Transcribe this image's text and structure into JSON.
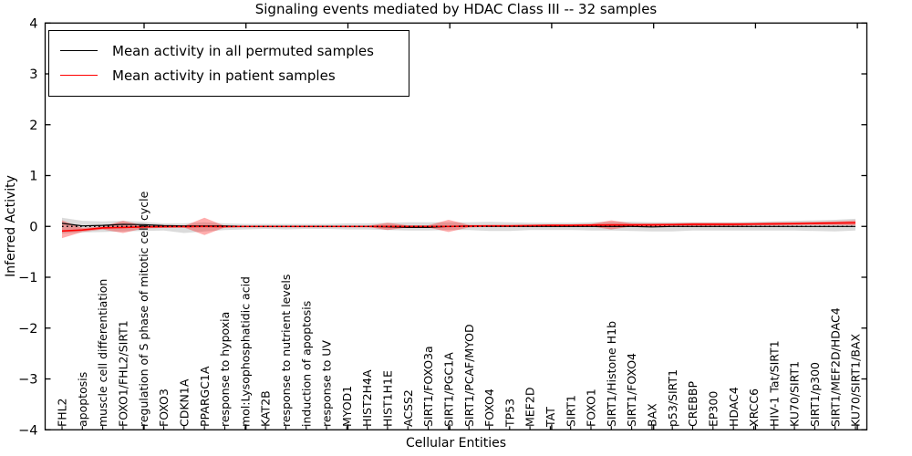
{
  "figure": {
    "title": "Signaling events mediated by HDAC Class III -- 32 samples",
    "xlabel": "Cellular Entities",
    "ylabel": "Inferred Activity",
    "legend": [
      {
        "label": "Mean activity in all permuted samples",
        "color": "#000000"
      },
      {
        "label": "Mean activity in patient samples",
        "color": "#ff0000"
      }
    ]
  },
  "chart_data": {
    "type": "line",
    "title": "Signaling events mediated by HDAC Class III -- 32 samples",
    "xlabel": "Cellular Entities",
    "ylabel": "Inferred Activity",
    "ylim": [
      -4,
      4
    ],
    "ytick_labels": [
      "4",
      "3",
      "2",
      "1",
      "0",
      "−1",
      "−2",
      "−3",
      "−4"
    ],
    "ytick_values": [
      4,
      3,
      2,
      1,
      0,
      -1,
      -2,
      -3,
      -4
    ],
    "grid": false,
    "legend_position": "upper left",
    "zero_line": {
      "style": "dotted",
      "color": "#000000",
      "y": 0
    },
    "categories": [
      "FHL2",
      "apoptosis",
      "muscle cell differentiation",
      "FOXO1/FHL2/SIRT1",
      "regulation of S phase of mitotic cell cycle",
      "FOXO3",
      "CDKN1A",
      "PPARGC1A",
      "response to hypoxia",
      "mol:Lysophosphatidic acid",
      "KAT2B",
      "response to nutrient levels",
      "induction of apoptosis",
      "response to UV",
      "MYOD1",
      "HIST2H4A",
      "HIST1H1E",
      "ACSS2",
      "SIRT1/FOXO3a",
      "SIRT1/PGC1A",
      "SIRT1/PCAF/MYOD",
      "FOXO4",
      "TP53",
      "MEF2D",
      "TAT",
      "SIRT1",
      "FOXO1",
      "SIRT1/Histone H1b",
      "SIRT1/FOXO4",
      "BAX",
      "p53/SIRT1",
      "CREBBP",
      "EP300",
      "HDAC4",
      "XRCC6",
      "HIV-1 Tat/SIRT1",
      "KU70/SIRT1",
      "SIRT1/p300",
      "SIRT1/MEF2D/HDAC4",
      "KU70/SIRT1/BAX"
    ],
    "series": [
      {
        "name": "Mean activity in all permuted samples",
        "color": "#000000",
        "width": 1.2,
        "values": [
          0.06,
          0.01,
          0.02,
          0.04,
          0.035,
          0.015,
          0.01,
          0.01,
          0.01,
          0.0,
          0.0,
          0.0,
          0.0,
          0.0,
          0.0,
          0.0,
          -0.01,
          -0.02,
          -0.02,
          0.0,
          0.01,
          0.0,
          0.0,
          0.0,
          0.0,
          0.0,
          0.0,
          0.0,
          0.0,
          -0.01,
          0.0,
          0.0,
          0.0,
          0.0,
          0.0,
          0.0,
          0.0,
          0.0,
          0.0,
          0.0
        ]
      },
      {
        "name": "Mean activity in patient samples",
        "color": "#ff0000",
        "width": 1.7,
        "values": [
          -0.09,
          -0.07,
          -0.03,
          -0.02,
          -0.01,
          -0.005,
          -0.005,
          0.0,
          -0.005,
          0.0,
          0.0,
          0.0,
          0.0,
          0.0,
          0.0,
          0.0,
          0.0,
          0.0,
          0.0,
          0.0,
          0.005,
          0.01,
          0.01,
          0.015,
          0.02,
          0.02,
          0.025,
          0.03,
          0.03,
          0.03,
          0.035,
          0.04,
          0.04,
          0.04,
          0.045,
          0.05,
          0.055,
          0.06,
          0.065,
          0.07
        ]
      }
    ],
    "bands": [
      {
        "name": "permuted-samples-range",
        "color": "#000000",
        "opacity": 0.14,
        "upper": [
          0.17,
          0.11,
          0.1,
          0.11,
          0.09,
          0.06,
          0.06,
          0.08,
          0.06,
          0.05,
          0.05,
          0.05,
          0.05,
          0.05,
          0.06,
          0.06,
          0.07,
          0.08,
          0.08,
          0.08,
          0.08,
          0.09,
          0.08,
          0.07,
          0.07,
          0.07,
          0.08,
          0.09,
          0.09,
          0.08,
          0.08,
          0.08,
          0.08,
          0.08,
          0.09,
          0.1,
          0.11,
          0.12,
          0.13,
          0.15
        ],
        "lower": [
          -0.14,
          -0.12,
          -0.11,
          -0.1,
          -0.09,
          -0.08,
          -0.13,
          -0.1,
          -0.07,
          -0.06,
          -0.05,
          -0.06,
          -0.05,
          -0.05,
          -0.06,
          -0.06,
          -0.07,
          -0.08,
          -0.08,
          -0.07,
          -0.07,
          -0.09,
          -0.09,
          -0.07,
          -0.07,
          -0.07,
          -0.08,
          -0.08,
          -0.09,
          -0.1,
          -0.1,
          -0.08,
          -0.08,
          -0.08,
          -0.08,
          -0.08,
          -0.08,
          -0.09,
          -0.1,
          -0.08
        ]
      },
      {
        "name": "patient-samples-range",
        "color": "#ff0000",
        "opacity": 0.32,
        "upper": [
          0.12,
          -0.03,
          0.0,
          0.11,
          0.02,
          0.01,
          0.01,
          0.17,
          0.01,
          0.01,
          0.01,
          0.01,
          0.01,
          0.01,
          0.01,
          0.01,
          0.07,
          0.02,
          0.02,
          0.13,
          0.03,
          0.03,
          0.03,
          0.03,
          0.04,
          0.04,
          0.05,
          0.12,
          0.06,
          0.06,
          0.06,
          0.07,
          0.07,
          0.07,
          0.07,
          0.08,
          0.08,
          0.09,
          0.1,
          0.12
        ],
        "lower": [
          -0.23,
          -0.11,
          -0.06,
          -0.13,
          -0.04,
          -0.03,
          -0.02,
          -0.17,
          -0.02,
          -0.01,
          -0.01,
          -0.01,
          -0.01,
          -0.01,
          -0.01,
          -0.01,
          -0.07,
          -0.02,
          -0.02,
          -0.11,
          -0.02,
          -0.01,
          -0.01,
          -0.01,
          0.0,
          0.0,
          0.0,
          -0.06,
          0.0,
          0.0,
          0.01,
          0.01,
          0.01,
          0.01,
          0.02,
          0.02,
          0.02,
          0.03,
          0.03,
          0.02
        ]
      }
    ]
  }
}
